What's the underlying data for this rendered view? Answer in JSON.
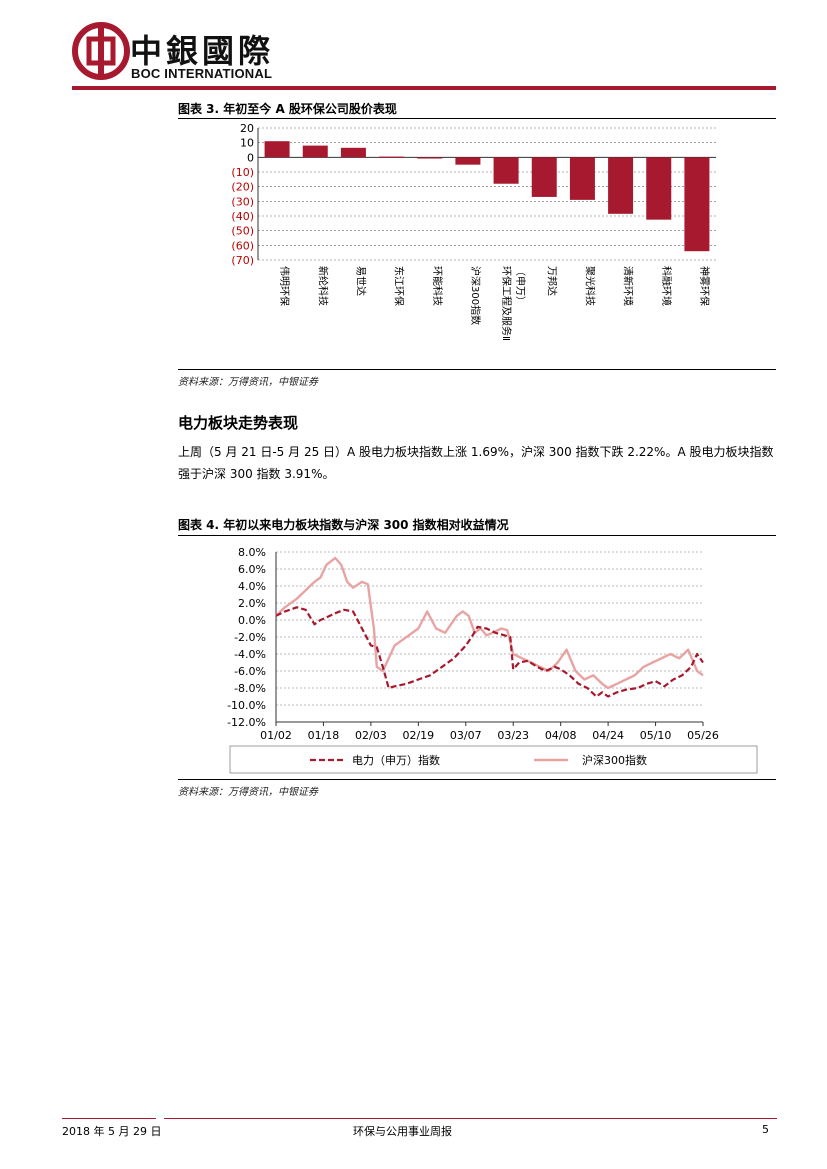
{
  "header": {
    "logo_cn": "中銀國際",
    "logo_en": "BOC INTERNATIONAL",
    "brand_color": "#a6192e",
    "logo_icon": "boc-coin-icon"
  },
  "figure3": {
    "title": "图表 3. 年初至今 A 股环保公司股价表现",
    "source": "资料来源：万得资讯，中银证券"
  },
  "section": {
    "heading": "电力板块走势表现",
    "paragraph": "上周（5 月 21 日-5 月 25 日）A 股电力板块指数上涨 1.69%，沪深 300 指数下跌 2.22%。A 股电力板块指数强于沪深 300 指数 3.91%。"
  },
  "figure4": {
    "title": "图表 4. 年初以来电力板块指数与沪深 300 指数相对收益情况",
    "source": "资料来源：万得资讯，中银证券"
  },
  "footer": {
    "date": "2018 年 5 月 29 日",
    "title": "环保与公用事业周报",
    "page": "5"
  },
  "chart_data": [
    {
      "type": "bar",
      "categories": [
        "伟明环保",
        "新纶科技",
        "易世达",
        "东江环保",
        "环能科技",
        "沪深300指数",
        "环保工程及服务Ⅱ（申万）",
        "万邦达",
        "聚光科技",
        "清新环境",
        "科融环境",
        "神雾环保"
      ],
      "values": [
        11,
        8,
        6.5,
        0.5,
        -0.5,
        -5,
        -18,
        -27,
        -29,
        -38.5,
        -42.5,
        -64
      ],
      "yticks": [
        "20",
        "10",
        "0",
        "(10)",
        "(20)",
        "(30)",
        "(40)",
        "(50)",
        "(60)",
        "(70)"
      ],
      "ylim": [
        -70,
        20
      ],
      "grid": true,
      "bar_color": "#a6192e",
      "negative_tick_color": "#c00000"
    },
    {
      "type": "line",
      "x_ticks": [
        "01/02",
        "01/18",
        "02/03",
        "02/19",
        "03/07",
        "03/23",
        "04/08",
        "04/24",
        "05/10",
        "05/26"
      ],
      "y_ticks": [
        "8.0%",
        "6.0%",
        "4.0%",
        "2.0%",
        "0.0%",
        "-2.0%",
        "-4.0%",
        "-6.0%",
        "-8.0%",
        "-10.0%",
        "-12.0%"
      ],
      "ylim": [
        -12,
        8
      ],
      "grid": true,
      "legend_position": "bottom",
      "series": [
        {
          "name": "电力（申万）指数",
          "color": "#a6192e",
          "style": "dashed",
          "x": [
            "01/02",
            "01/05",
            "01/09",
            "01/12",
            "01/15",
            "01/17",
            "01/19",
            "01/22",
            "01/25",
            "01/28",
            "01/31",
            "02/03",
            "02/05",
            "02/07",
            "02/09",
            "02/11",
            "02/15",
            "02/19",
            "02/23",
            "02/27",
            "03/03",
            "03/07",
            "03/09",
            "03/11",
            "03/14",
            "03/17",
            "03/20",
            "03/22",
            "03/23",
            "03/25",
            "03/28",
            "03/31",
            "04/03",
            "04/06",
            "04/08",
            "04/11",
            "04/14",
            "04/17",
            "04/20",
            "04/22",
            "04/24",
            "04/27",
            "04/30",
            "05/04",
            "05/07",
            "05/10",
            "05/13",
            "05/16",
            "05/19",
            "05/22",
            "05/24",
            "05/26"
          ],
          "y": [
            0.5,
            1.0,
            1.5,
            1.2,
            -0.5,
            0.0,
            0.3,
            0.8,
            1.2,
            1.0,
            -1.0,
            -3.0,
            -3.2,
            -5.5,
            -8.0,
            -7.8,
            -7.5,
            -7.0,
            -6.5,
            -5.5,
            -4.5,
            -3.0,
            -2.0,
            -0.8,
            -1.0,
            -1.5,
            -1.8,
            -2.0,
            -5.8,
            -5.0,
            -4.8,
            -5.5,
            -6.0,
            -5.5,
            -5.8,
            -6.5,
            -7.5,
            -8.0,
            -9.0,
            -8.5,
            -9.0,
            -8.5,
            -8.2,
            -8.0,
            -7.5,
            -7.2,
            -7.8,
            -7.0,
            -6.5,
            -5.5,
            -4.0,
            -5.0
          ]
        },
        {
          "name": "沪深300指数",
          "color": "#e8a3a3",
          "style": "solid",
          "x": [
            "01/02",
            "01/05",
            "01/09",
            "01/12",
            "01/15",
            "01/17",
            "01/19",
            "01/22",
            "01/24",
            "01/26",
            "01/28",
            "01/31",
            "02/02",
            "02/04",
            "02/05",
            "02/07",
            "02/09",
            "02/11",
            "02/13",
            "02/15",
            "02/19",
            "02/22",
            "02/25",
            "02/28",
            "03/02",
            "03/04",
            "03/06",
            "03/08",
            "03/10",
            "03/12",
            "03/14",
            "03/16",
            "03/19",
            "03/21",
            "03/23",
            "03/26",
            "03/29",
            "04/01",
            "04/04",
            "04/07",
            "04/10",
            "04/13",
            "04/16",
            "04/19",
            "04/22",
            "04/24",
            "04/27",
            "04/30",
            "05/03",
            "05/06",
            "05/09",
            "05/12",
            "05/15",
            "05/18",
            "05/21",
            "05/24",
            "05/26"
          ],
          "y": [
            0.5,
            1.5,
            2.5,
            3.5,
            4.5,
            5.0,
            6.5,
            7.3,
            6.5,
            4.5,
            3.8,
            4.5,
            4.2,
            -1.0,
            -5.5,
            -6.0,
            -4.5,
            -3.0,
            -2.5,
            -2.0,
            -1.0,
            1.0,
            -1.0,
            -1.5,
            -0.5,
            0.5,
            1.0,
            0.5,
            -1.5,
            -1.0,
            -1.8,
            -1.5,
            -1.0,
            -1.2,
            -4.0,
            -4.5,
            -5.0,
            -5.5,
            -6.0,
            -5.0,
            -3.5,
            -6.0,
            -7.0,
            -6.5,
            -7.5,
            -8.0,
            -7.5,
            -7.0,
            -6.5,
            -5.5,
            -5.0,
            -4.5,
            -4.0,
            -4.5,
            -3.5,
            -6.0,
            -6.5
          ]
        }
      ]
    }
  ]
}
